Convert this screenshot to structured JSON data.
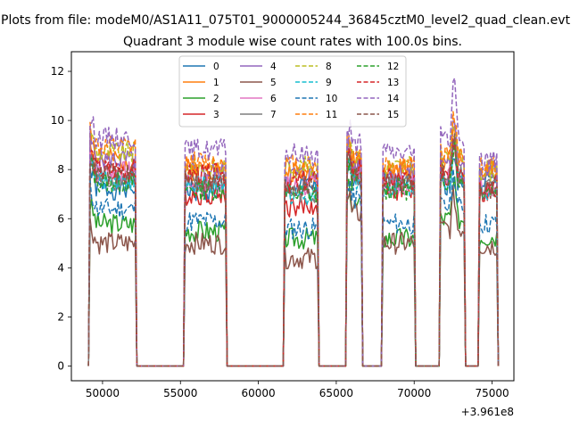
{
  "chart_data": {
    "type": "line",
    "suptitle": "Plots from file: modeM0/AS1A11_075T01_9000005244_36845cztM0_level2_quad_clean.evt",
    "title": "Quadrant 3 module wise count rates with 100.0s bins.",
    "xlabel": "",
    "ylabel": "",
    "x_offset_label": "+3.961e8",
    "xlim": [
      48000,
      76400
    ],
    "ylim": [
      -0.6,
      12.8
    ],
    "x_ticks": [
      50000,
      55000,
      60000,
      65000,
      70000,
      75000
    ],
    "x_tick_labels": [
      "50000",
      "55000",
      "60000",
      "65000",
      "70000",
      "75000"
    ],
    "y_ticks": [
      0,
      2,
      4,
      6,
      8,
      10,
      12
    ],
    "y_tick_labels": [
      "0",
      "2",
      "4",
      "6",
      "8",
      "10",
      "12"
    ],
    "segments": [
      {
        "start": 49200,
        "end": 52100,
        "gap_to": 55300
      },
      {
        "start": 55300,
        "end": 57900,
        "gap_to": 61700
      },
      {
        "start": 61700,
        "end": 63800,
        "gap_to": 65700
      },
      {
        "start": 65700,
        "end": 66600,
        "gap_to": 68000
      },
      {
        "start": 68000,
        "end": 70000,
        "gap_to": 71700
      },
      {
        "start": 71700,
        "end": 73200,
        "gap_to": 74200
      },
      {
        "start": 74200,
        "end": 75300,
        "gap_to": null
      }
    ],
    "series": [
      {
        "name": "0",
        "color": "#1f77b4",
        "dash": false,
        "levels": [
          7.2,
          7.1,
          7.3,
          7.3,
          7.6,
          7.4,
          7.6
        ]
      },
      {
        "name": "1",
        "color": "#ff7f0e",
        "dash": false,
        "levels": [
          8.4,
          8.0,
          7.9,
          8.3,
          8.0,
          8.4,
          7.9
        ]
      },
      {
        "name": "2",
        "color": "#2ca02c",
        "dash": false,
        "levels": [
          5.8,
          5.5,
          5.2,
          6.5,
          5.2,
          6.0,
          5.3
        ]
      },
      {
        "name": "3",
        "color": "#d62728",
        "dash": false,
        "levels": [
          7.8,
          7.0,
          6.5,
          8.0,
          7.2,
          7.8,
          7.0
        ]
      },
      {
        "name": "4",
        "color": "#9467bd",
        "dash": false,
        "levels": [
          8.4,
          7.9,
          7.8,
          8.2,
          7.9,
          8.4,
          7.9
        ]
      },
      {
        "name": "5",
        "color": "#8c564b",
        "dash": false,
        "levels": [
          5.0,
          5.0,
          4.4,
          6.2,
          5.0,
          5.6,
          4.9
        ]
      },
      {
        "name": "6",
        "color": "#e377c2",
        "dash": false,
        "levels": [
          7.9,
          7.4,
          7.3,
          7.8,
          7.4,
          7.9,
          7.3
        ]
      },
      {
        "name": "7",
        "color": "#7f7f7f",
        "dash": false,
        "levels": [
          7.6,
          7.4,
          7.1,
          7.6,
          7.3,
          7.7,
          7.3
        ]
      },
      {
        "name": "8",
        "color": "#bcbd22",
        "dash": true,
        "levels": [
          8.7,
          8.1,
          8.1,
          8.5,
          8.1,
          8.5,
          8.0
        ]
      },
      {
        "name": "9",
        "color": "#17becf",
        "dash": true,
        "levels": [
          7.6,
          7.3,
          7.0,
          7.6,
          7.3,
          7.6,
          7.2
        ]
      },
      {
        "name": "10",
        "color": "#1f77b4",
        "dash": true,
        "levels": [
          6.4,
          5.9,
          5.6,
          6.8,
          5.8,
          6.5,
          5.8
        ]
      },
      {
        "name": "11",
        "color": "#ff7f0e",
        "dash": true,
        "levels": [
          8.9,
          8.3,
          8.2,
          8.6,
          8.2,
          8.7,
          8.1
        ]
      },
      {
        "name": "12",
        "color": "#2ca02c",
        "dash": true,
        "levels": [
          7.5,
          7.2,
          7.0,
          7.6,
          7.2,
          7.6,
          7.2
        ]
      },
      {
        "name": "13",
        "color": "#d62728",
        "dash": true,
        "levels": [
          8.0,
          7.8,
          7.5,
          8.0,
          7.6,
          8.0,
          7.4
        ]
      },
      {
        "name": "14",
        "color": "#9467bd",
        "dash": true,
        "levels": [
          9.3,
          8.8,
          8.6,
          9.0,
          8.7,
          9.3,
          8.4
        ]
      },
      {
        "name": "15",
        "color": "#8c564b",
        "dash": true,
        "levels": [
          7.8,
          7.5,
          7.3,
          7.8,
          7.4,
          7.8,
          7.2
        ]
      }
    ],
    "legend_position": "top-center",
    "legend_columns": 4
  }
}
